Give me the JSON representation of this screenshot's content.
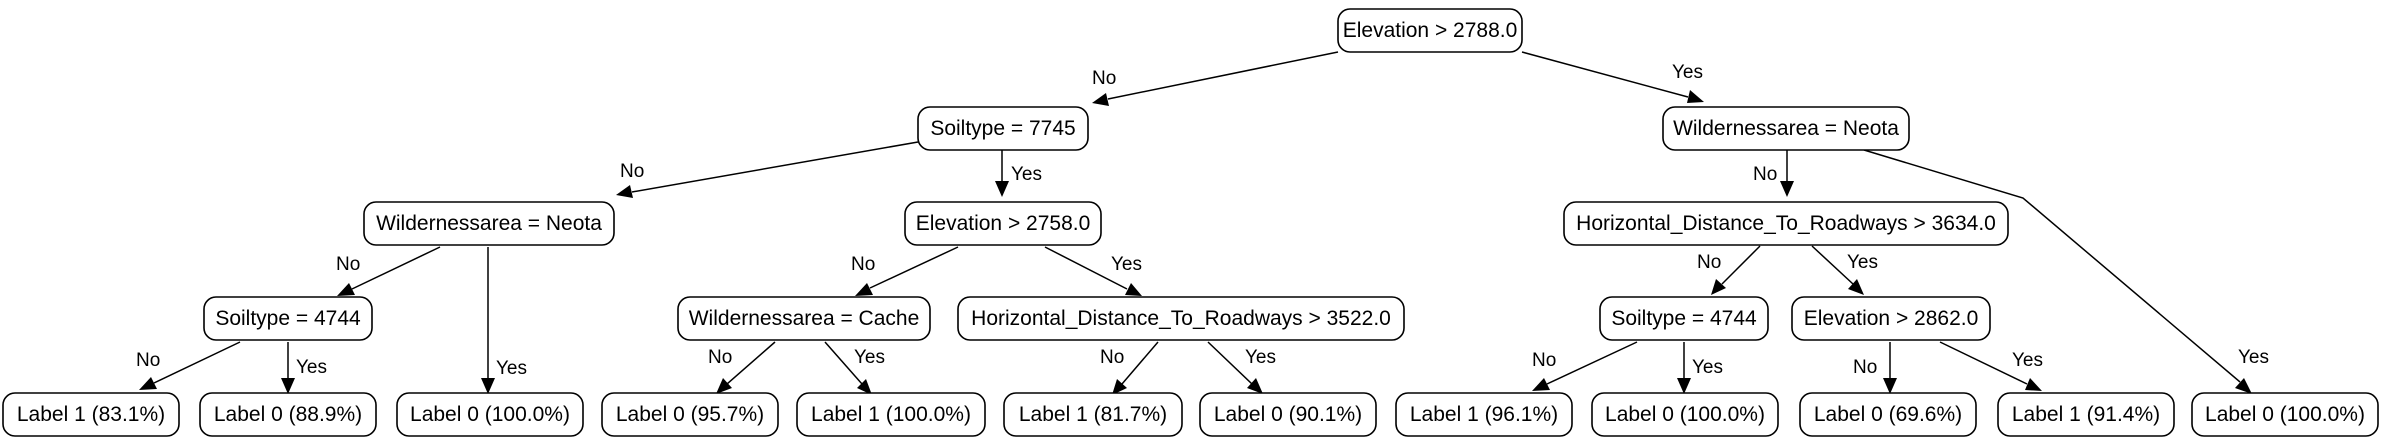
{
  "tree": {
    "nodes": {
      "root": "Elevation > 2788.0",
      "l1": "Soiltype = 7745",
      "r1": "Wildernessarea = Neota",
      "l1l": "Wildernessarea = Neota",
      "l1r": "Elevation > 2758.0",
      "l1ll": "Soiltype = 4744",
      "l1rl": "Wildernessarea = Cache",
      "l1rr": "Horizontal_Distance_To_Roadways > 3522.0",
      "r1l": "Horizontal_Distance_To_Roadways > 3634.0",
      "r1ll": "Soiltype = 4744",
      "r1lr": "Elevation > 2862.0",
      "leaf1": "Label 1 (83.1%)",
      "leaf2": "Label 0 (88.9%)",
      "leaf3": "Label 0 (100.0%)",
      "leaf4": "Label 0 (95.7%)",
      "leaf5": "Label 1 (100.0%)",
      "leaf6": "Label 1 (81.7%)",
      "leaf7": "Label 0 (90.1%)",
      "leaf8": "Label 1 (96.1%)",
      "leaf9": "Label 0 (100.0%)",
      "leaf10": "Label 0 (69.6%)",
      "leaf11": "Label 1 (91.4%)",
      "leaf12": "Label 0 (100.0%)"
    },
    "edge_labels": {
      "no": "No",
      "yes": "Yes"
    }
  }
}
